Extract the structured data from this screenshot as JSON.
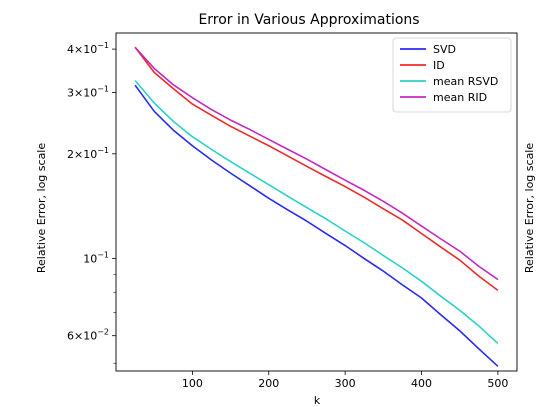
{
  "chart_data": {
    "type": "line",
    "title": "Error in Various Approximations",
    "xlabel": "k",
    "ylabel": "Relative Error, log scale",
    "ylabel_right": "Relative Error, log scale",
    "xlim": [
      0,
      525
    ],
    "ylim": [
      0.0475,
      0.445
    ],
    "yscale": "log",
    "grid": false,
    "legend_position": "top-right",
    "x_ticks": [
      {
        "value": 100,
        "label": "100"
      },
      {
        "value": 200,
        "label": "200"
      },
      {
        "value": 300,
        "label": "300"
      },
      {
        "value": 400,
        "label": "400"
      },
      {
        "value": 500,
        "label": "500"
      }
    ],
    "y_ticks": [
      {
        "value": 0.06,
        "base": "6",
        "exp": "−2"
      },
      {
        "value": 0.1,
        "base": "",
        "exp": "−1"
      },
      {
        "value": 0.2,
        "base": "2",
        "exp": "−1"
      },
      {
        "value": 0.3,
        "base": "3",
        "exp": "−1"
      },
      {
        "value": 0.4,
        "base": "4",
        "exp": "−1"
      }
    ],
    "y_minor_ticks": [
      0.05,
      0.07,
      0.08,
      0.09
    ],
    "x": [
      25,
      50,
      75,
      100,
      125,
      150,
      175,
      200,
      225,
      250,
      275,
      300,
      325,
      350,
      375,
      400,
      425,
      450,
      475,
      500
    ],
    "series": [
      {
        "name": "SVD",
        "color": "#2a2af0",
        "values": [
          0.315,
          0.265,
          0.234,
          0.211,
          0.192,
          0.176,
          0.162,
          0.149,
          0.138,
          0.128,
          0.118,
          0.109,
          0.1,
          0.092,
          0.084,
          0.077,
          0.069,
          0.062,
          0.055,
          0.049
        ]
      },
      {
        "name": "ID",
        "color": "#f02a2a",
        "values": [
          0.405,
          0.343,
          0.308,
          0.278,
          0.258,
          0.24,
          0.225,
          0.211,
          0.197,
          0.184,
          0.172,
          0.161,
          0.15,
          0.139,
          0.129,
          0.118,
          0.108,
          0.099,
          0.089,
          0.081
        ]
      },
      {
        "name": "mean RSVD",
        "color": "#2ad2c8",
        "values": [
          0.325,
          0.28,
          0.248,
          0.224,
          0.206,
          0.19,
          0.176,
          0.163,
          0.151,
          0.14,
          0.13,
          0.12,
          0.111,
          0.102,
          0.094,
          0.086,
          0.078,
          0.071,
          0.064,
          0.057
        ]
      },
      {
        "name": "mean RID",
        "color": "#c42ac4",
        "values": [
          0.405,
          0.352,
          0.316,
          0.29,
          0.268,
          0.25,
          0.235,
          0.22,
          0.206,
          0.193,
          0.18,
          0.168,
          0.157,
          0.146,
          0.135,
          0.124,
          0.114,
          0.105,
          0.095,
          0.087
        ]
      }
    ]
  }
}
